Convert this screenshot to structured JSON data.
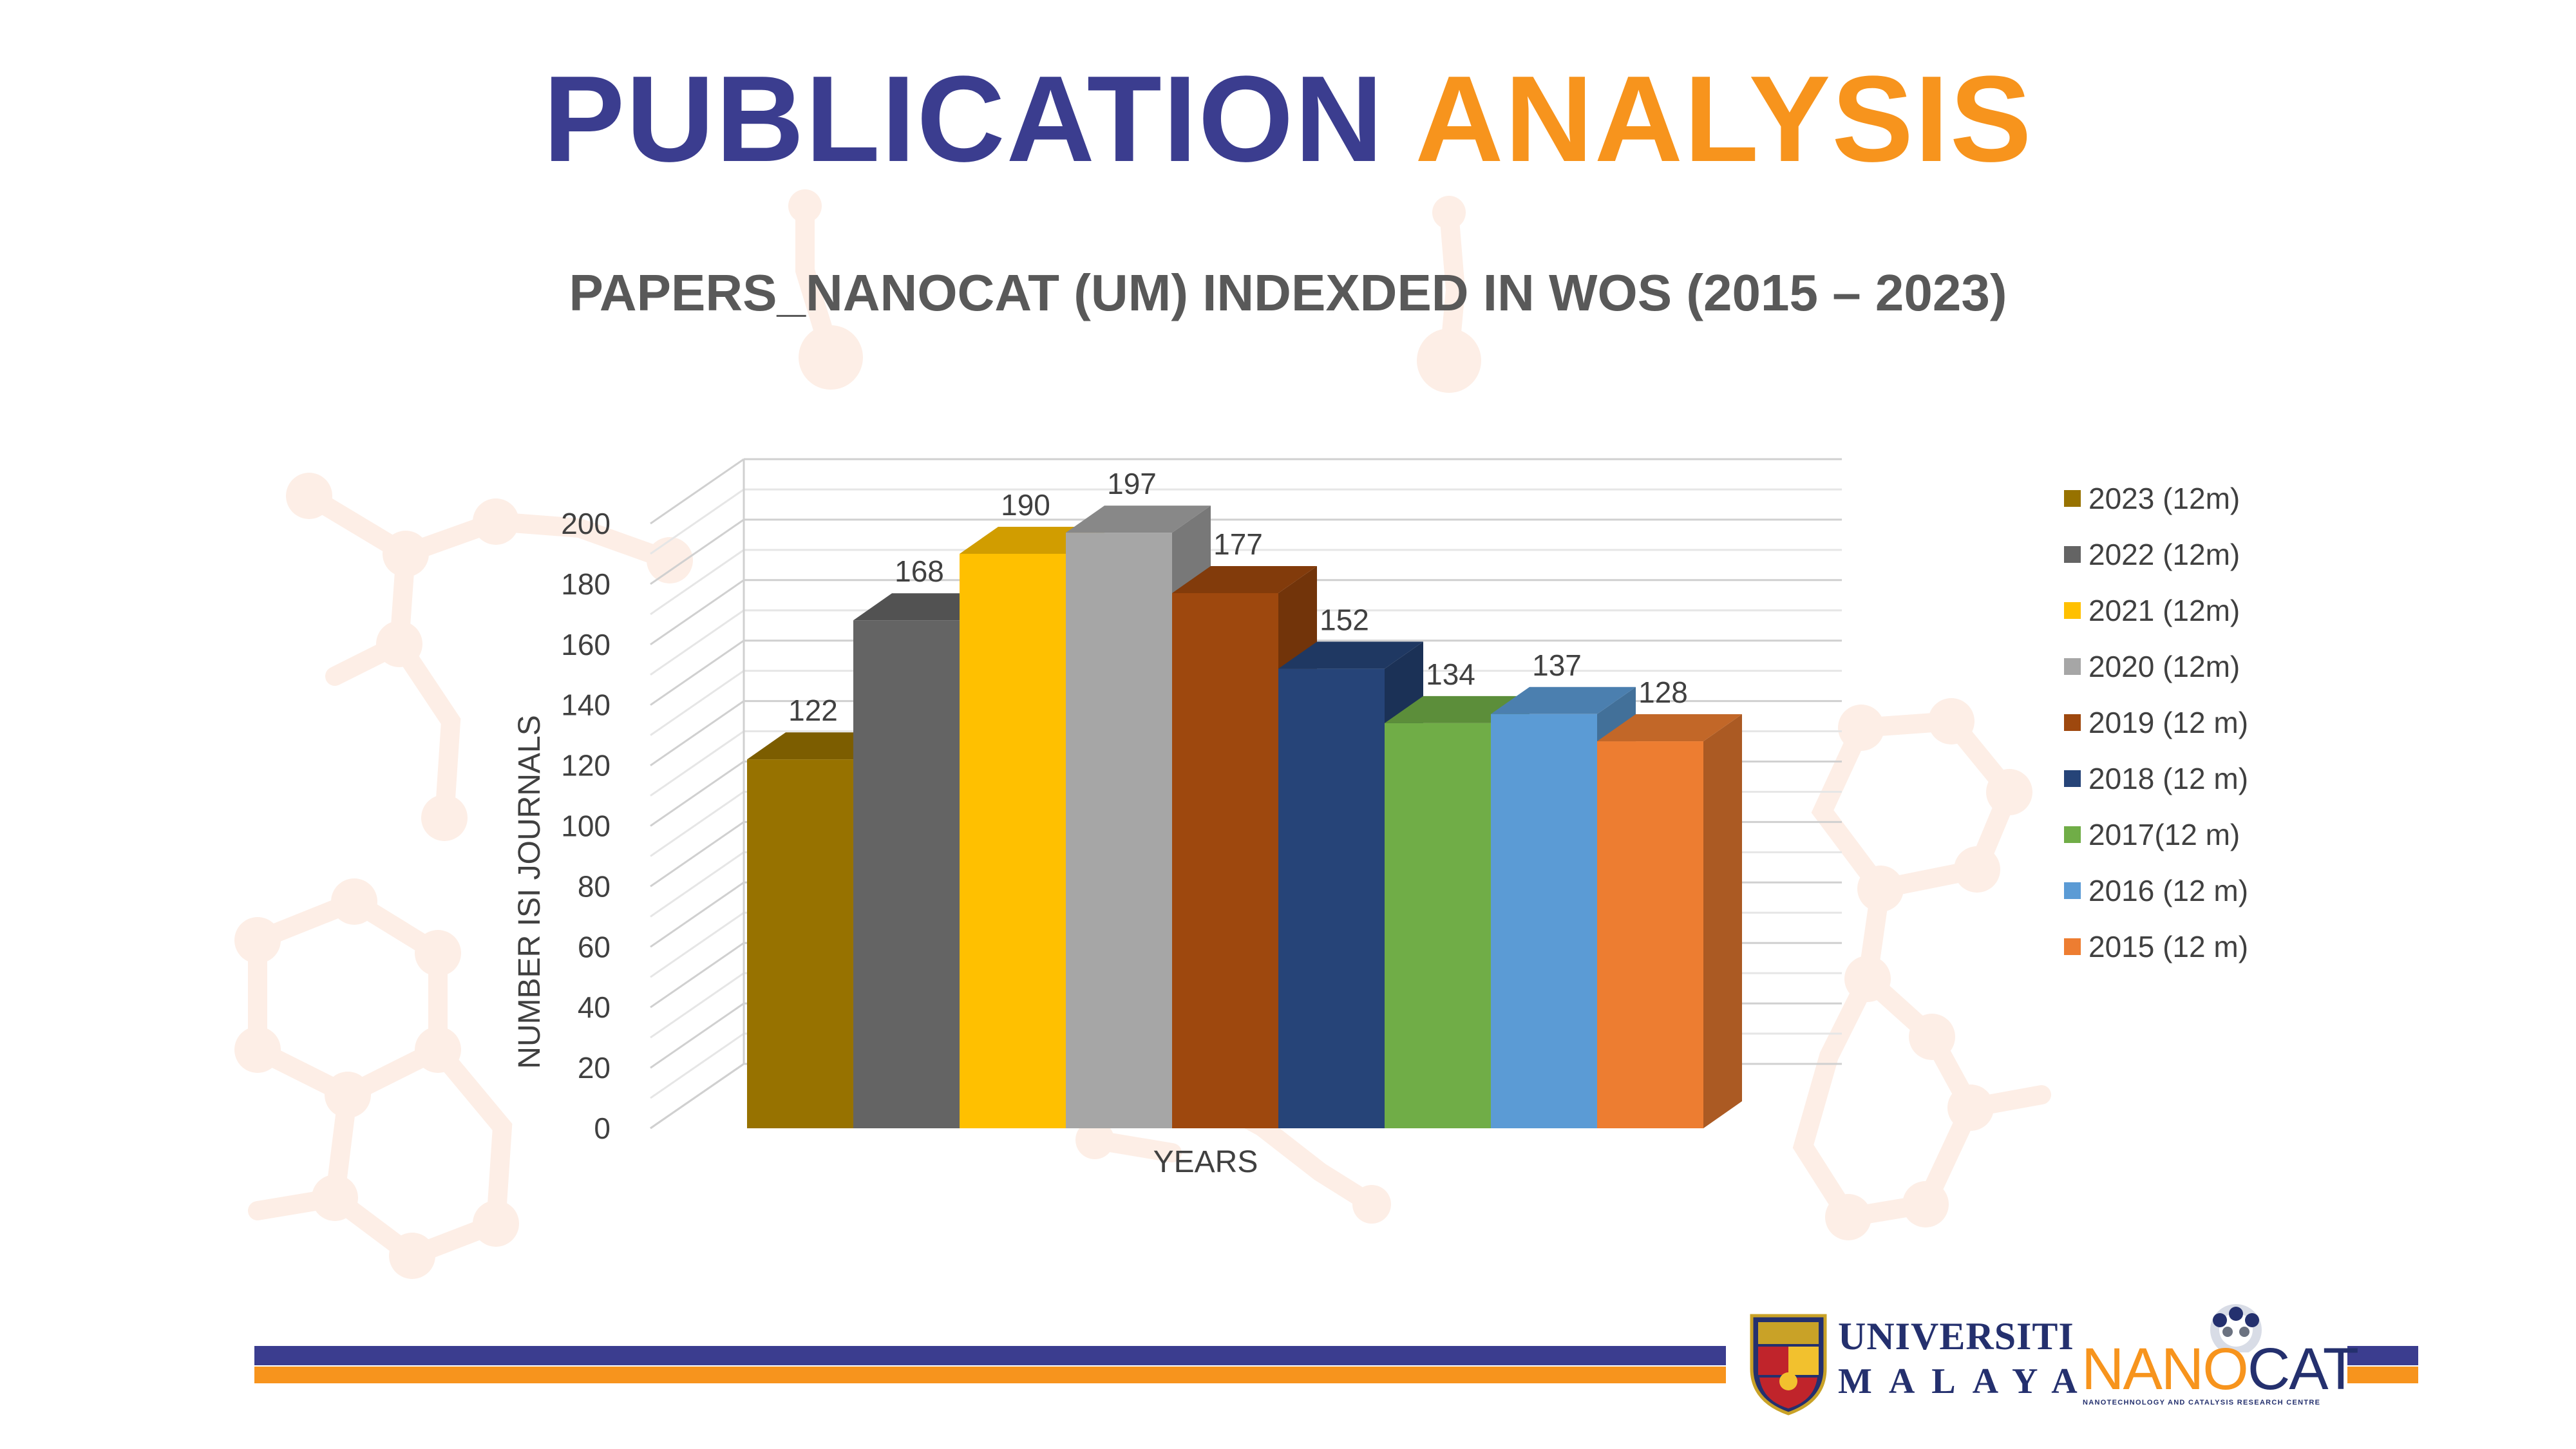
{
  "page": {
    "title_part_1": "PUBLICATION",
    "title_part_2": "ANALYSIS",
    "title_colors": [
      "#3b3d8f",
      "#f7941d"
    ]
  },
  "chart_data": {
    "type": "bar",
    "title": "PAPERS_NANOCAT (UM) INDEXDED IN WOS (2015 – 2023)",
    "xlabel": "YEARS",
    "ylabel": "NUMBER ISI JOURNALS",
    "ylim": [
      0,
      200
    ],
    "ytick_step": 20,
    "yticks": [
      "0",
      "20",
      "40",
      "60",
      "80",
      "100",
      "120",
      "140",
      "160",
      "180",
      "200"
    ],
    "grid": true,
    "three_d": true,
    "legend_position": "right",
    "series": [
      {
        "name": "2023 (12m)",
        "value": 122,
        "color": "#977200"
      },
      {
        "name": "2022 (12m)",
        "value": 168,
        "color": "#646464"
      },
      {
        "name": "2021 (12m)",
        "value": 190,
        "color": "#ffc000"
      },
      {
        "name": "2020 (12m)",
        "value": 197,
        "color": "#a6a6a6"
      },
      {
        "name": "2019 (12 m)",
        "value": 177,
        "color": "#9e480e"
      },
      {
        "name": "2018 (12 m)",
        "value": 152,
        "color": "#264478"
      },
      {
        "name": "2017(12 m)",
        "value": 134,
        "color": "#70ad47"
      },
      {
        "name": "2016 (12 m)",
        "value": 137,
        "color": "#5b9bd5"
      },
      {
        "name": "2015 (12 m)",
        "value": 128,
        "color": "#ed7d31"
      }
    ]
  },
  "logos": {
    "um_line1": "UNIVERSITI",
    "um_line2": "MALAYA",
    "nanocat_part_1": "NANO",
    "nanocat_part_2": "CAT",
    "nanocat_sub": "NANOTECHNOLOGY AND CATALYSIS RESEARCH CENTRE"
  }
}
